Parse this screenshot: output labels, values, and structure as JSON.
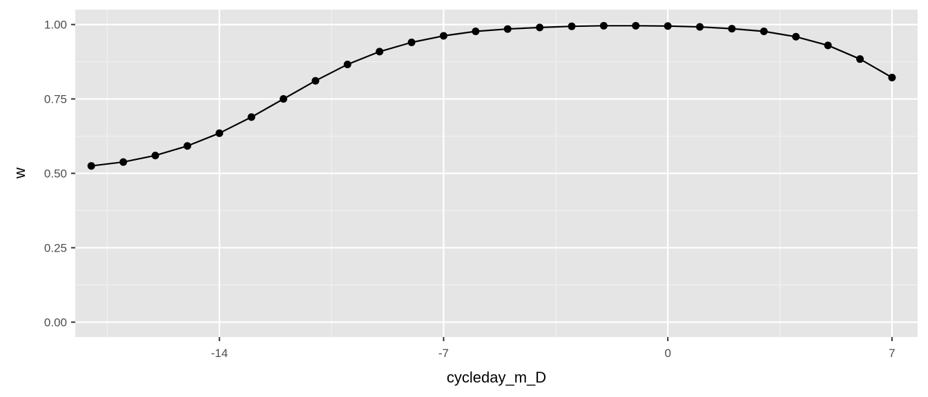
{
  "chart_data": {
    "type": "line",
    "xlabel": "cycleday_m_D",
    "ylabel": "w",
    "xlim": [
      -18.5,
      7.8
    ],
    "ylim": [
      -0.05,
      1.05
    ],
    "x_ticks": [
      {
        "value": -14,
        "label": "-14"
      },
      {
        "value": -7,
        "label": "-7"
      },
      {
        "value": 0,
        "label": "0"
      },
      {
        "value": 7,
        "label": "7"
      }
    ],
    "x_minor_ticks": [
      -17.5,
      -10.5,
      -3.5,
      3.5
    ],
    "y_ticks": [
      {
        "value": 0,
        "label": "0.00"
      },
      {
        "value": 0.25,
        "label": "0.25"
      },
      {
        "value": 0.5,
        "label": "0.50"
      },
      {
        "value": 0.75,
        "label": "0.75"
      },
      {
        "value": 1,
        "label": "1.00"
      }
    ],
    "y_minor_ticks": [
      0.125,
      0.375,
      0.625,
      0.875
    ],
    "grid": true,
    "panel_color": "#e5e5e5",
    "line_color": "#000000",
    "series": [
      {
        "x": [
          -18,
          -17,
          -16,
          -15,
          -14,
          -13,
          -12,
          -11,
          -10,
          -9,
          -8,
          -7,
          -6,
          -5,
          -4,
          -3,
          -2,
          -1,
          0,
          1,
          2,
          3,
          4,
          5,
          6,
          7
        ],
        "values": [
          0.525,
          0.538,
          0.56,
          0.592,
          0.635,
          0.689,
          0.75,
          0.811,
          0.866,
          0.909,
          0.94,
          0.962,
          0.977,
          0.985,
          0.99,
          0.994,
          0.996,
          0.996,
          0.995,
          0.992,
          0.986,
          0.977,
          0.959,
          0.93,
          0.884,
          0.822
        ]
      }
    ]
  }
}
